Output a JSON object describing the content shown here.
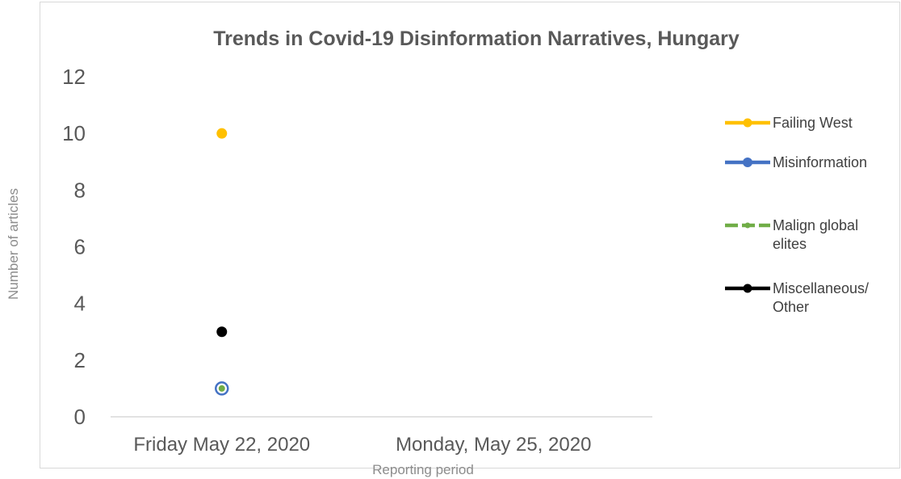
{
  "chart_data": {
    "type": "scatter",
    "title": "Trends in Covid-19 Disinformation Narratives, Hungary",
    "xlabel": "Reporting period",
    "ylabel": "Number of articles",
    "categories": [
      "Friday May 22, 2020",
      "Monday, May 25, 2020"
    ],
    "ylim": [
      0,
      12
    ],
    "yticks": [
      0,
      2,
      4,
      6,
      8,
      10,
      12
    ],
    "grid": false,
    "legend_position": "right",
    "series": [
      {
        "name": "Failing West",
        "label_lines": [
          "Failing West"
        ],
        "color": "#ffc000",
        "marker": "dot",
        "line": "solid",
        "values": [
          10,
          null
        ]
      },
      {
        "name": "Misinformation",
        "label_lines": [
          "Misinformation"
        ],
        "color": "#4472c4",
        "marker": "dot-large",
        "line": "solid",
        "values": [
          1,
          null
        ]
      },
      {
        "name": "Malign global elites",
        "label_lines": [
          "Malign global",
          "elites"
        ],
        "color": "#70ad47",
        "marker": "dot-small",
        "line": "dashed",
        "values": [
          1,
          null
        ]
      },
      {
        "name": "Miscellaneous/ Other",
        "label_lines": [
          "Miscellaneous/",
          "Other"
        ],
        "color": "#000000",
        "marker": "dot",
        "line": "solid",
        "values": [
          3,
          null
        ]
      }
    ]
  }
}
